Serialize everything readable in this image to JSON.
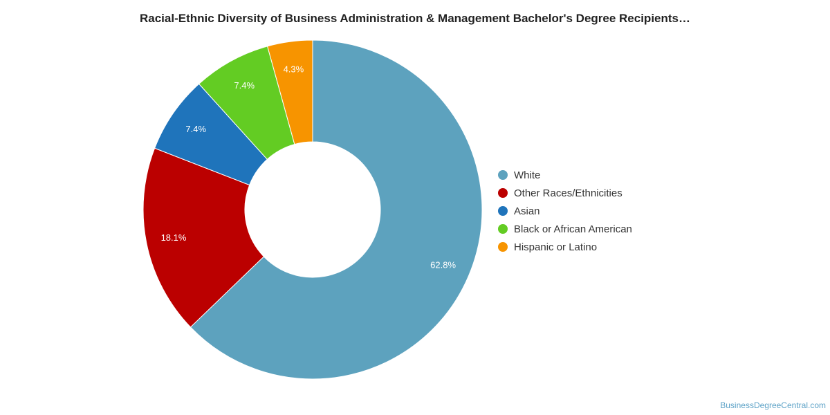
{
  "source_credit": "BusinessDegreeCentral.com",
  "chart_data": {
    "type": "pie",
    "variant": "donut",
    "title": "Racial-Ethnic Diversity of Business Administration & Management Bachelor's Degree Recipients…",
    "start": "top, clockwise",
    "legend_position": "right",
    "categories": [
      "White",
      "Other Races/Ethnicities",
      "Asian",
      "Black or African American",
      "Hispanic or Latino"
    ],
    "values": [
      62.8,
      18.1,
      7.4,
      7.4,
      4.3
    ],
    "value_labels": [
      "62.8%",
      "18.1%",
      "7.4%",
      "7.4%",
      "4.3%"
    ],
    "colors": [
      "#5da2be",
      "#bb0000",
      "#1f74bb",
      "#63cc23",
      "#f79400"
    ]
  }
}
